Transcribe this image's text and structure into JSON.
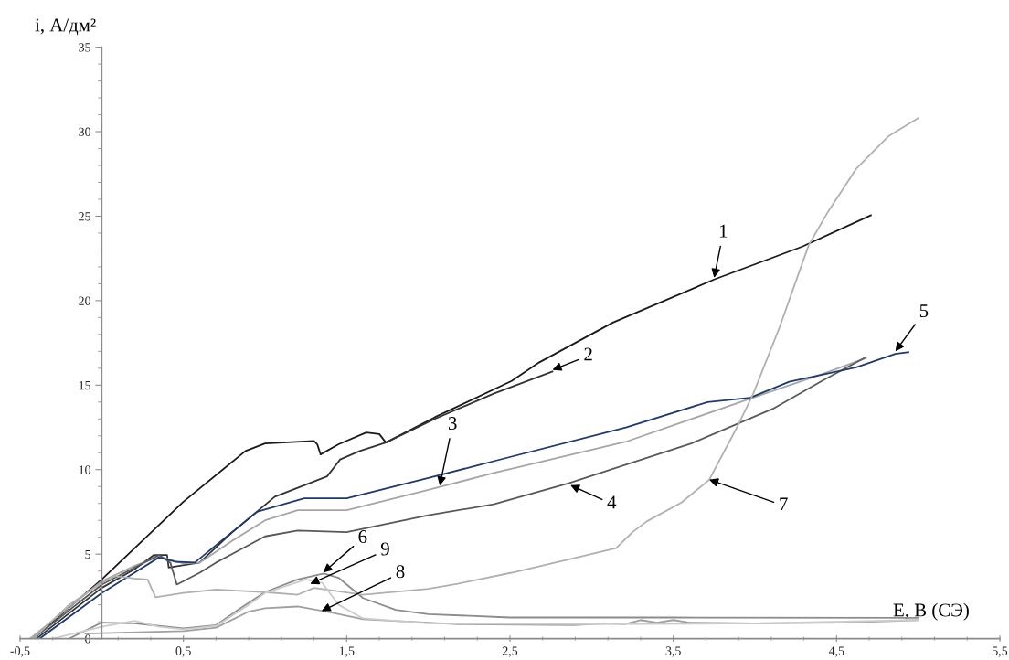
{
  "chart_data": {
    "type": "line",
    "xlabel": "E, В (СЭ)",
    "ylabel": "i, А/дм²",
    "xlim": [
      -0.5,
      5.5
    ],
    "ylim": [
      0,
      35
    ],
    "xticks": [
      {
        "value": -0.5,
        "label": "-0,5"
      },
      {
        "value": 0.5,
        "label": "0,5"
      },
      {
        "value": 1.5,
        "label": "1,5"
      },
      {
        "value": 2.5,
        "label": "2,5"
      },
      {
        "value": 3.5,
        "label": "3,5"
      },
      {
        "value": 4.5,
        "label": "4,5"
      },
      {
        "value": 5.5,
        "label": "5,5"
      }
    ],
    "yticks": [
      0,
      5,
      10,
      15,
      20,
      25,
      30,
      35
    ],
    "grid": false,
    "legend": false,
    "marker": "none",
    "line_style": "solid",
    "series": [
      {
        "color": "#1a1a1a",
        "x": [
          -0.42,
          0,
          0.5,
          0.88,
          1.0,
          1.3,
          1.32,
          1.34,
          1.45,
          1.62,
          1.7,
          1.74,
          2.04,
          2.51,
          2.68,
          3.13,
          3.75,
          4.29,
          4.71
        ],
        "values": [
          0,
          3.5,
          8.1,
          11.1,
          11.55,
          11.7,
          11.5,
          10.9,
          11.5,
          12.2,
          12.1,
          11.6,
          13.1,
          15.25,
          16.35,
          18.7,
          21.25,
          23.2,
          25.05
        ]
      },
      {
        "color": "#333333",
        "x": [
          -0.4,
          0,
          0.2,
          0.32,
          0.4,
          0.41,
          0.6,
          0.8,
          1.06,
          1.38,
          1.46,
          1.58,
          1.74,
          2.04,
          2.4,
          2.76
        ],
        "values": [
          0,
          3.0,
          4.1,
          4.95,
          4.95,
          4.2,
          4.5,
          6.3,
          8.4,
          9.6,
          10.6,
          11.1,
          11.6,
          13.0,
          14.5,
          15.8
        ]
      },
      {
        "color": "#a6a6a6",
        "x": [
          -0.44,
          0,
          0.2,
          0.35,
          0.5,
          0.6,
          0.8,
          1.0,
          1.2,
          1.5,
          2.0,
          2.4,
          3.21,
          3.97,
          4.41,
          4.68
        ],
        "values": [
          0,
          3.4,
          4.3,
          4.85,
          4.45,
          4.5,
          5.8,
          7.0,
          7.6,
          7.6,
          8.8,
          9.8,
          11.65,
          14.2,
          15.65,
          16.6
        ]
      },
      {
        "color": "#595959",
        "x": [
          -0.42,
          0,
          0.2,
          0.35,
          0.42,
          0.46,
          0.6,
          0.7,
          1.0,
          1.2,
          1.5,
          2.0,
          2.4,
          2.86,
          3.61,
          4.11,
          4.41,
          4.67
        ],
        "values": [
          0,
          3.2,
          4.2,
          4.95,
          4.5,
          3.2,
          3.9,
          4.5,
          6.05,
          6.4,
          6.3,
          7.3,
          7.95,
          9.2,
          11.55,
          13.6,
          15.25,
          16.6
        ]
      },
      {
        "color": "#1f3a6e",
        "x": [
          -0.38,
          0,
          0.2,
          0.35,
          0.45,
          0.57,
          0.95,
          1.24,
          1.5,
          2.0,
          2.4,
          3.21,
          3.71,
          3.97,
          4.21,
          4.62,
          4.86,
          4.94
        ],
        "values": [
          0,
          2.7,
          3.9,
          4.8,
          4.55,
          4.5,
          7.5,
          8.3,
          8.3,
          9.5,
          10.5,
          12.5,
          14.0,
          14.25,
          15.2,
          16.05,
          16.85,
          16.95
        ]
      },
      {
        "color": "#8c8c8c",
        "x": [
          -0.2,
          0,
          0.2,
          0.5,
          0.7,
          0.85,
          1.0,
          1.2,
          1.36,
          1.45,
          1.6,
          1.8,
          2.0,
          2.5,
          3.5,
          5.0
        ],
        "values": [
          0,
          0.95,
          0.9,
          0.6,
          0.8,
          1.8,
          2.75,
          3.5,
          3.85,
          3.6,
          2.4,
          1.7,
          1.45,
          1.25,
          1.25,
          1.23
        ]
      },
      {
        "color": "#b0b0b0",
        "x": [
          -0.42,
          -0.2,
          0,
          0.08,
          0.2,
          0.28,
          0.33,
          0.5,
          0.7,
          1.0,
          1.2,
          1.3,
          1.6,
          2.0,
          2.18,
          2.51,
          2.82,
          3.15,
          3.25,
          3.34,
          3.55,
          3.72,
          3.89,
          3.99,
          4.15,
          4.33,
          4.45,
          4.62,
          4.82,
          5.0
        ],
        "values": [
          0,
          2.0,
          3.3,
          3.7,
          3.55,
          3.5,
          2.45,
          2.7,
          2.9,
          2.75,
          2.6,
          3.0,
          2.6,
          2.95,
          3.25,
          3.9,
          4.6,
          5.35,
          6.3,
          6.95,
          8.05,
          9.4,
          12.5,
          14.5,
          18.4,
          23.3,
          25.3,
          27.8,
          29.75,
          30.8
        ]
      },
      {
        "color": "#a0a0a0",
        "x": [
          -0.1,
          0.5,
          0.7,
          0.9,
          1.0,
          1.2,
          1.4,
          1.6,
          2.0,
          2.18,
          2.89,
          3.1,
          3.2,
          3.3,
          3.4,
          3.5,
          3.6,
          4.0,
          4.54,
          5.0
        ],
        "values": [
          0.3,
          0.45,
          0.65,
          1.6,
          1.8,
          1.9,
          1.55,
          1.15,
          0.95,
          0.85,
          0.8,
          0.9,
          0.85,
          1.1,
          0.95,
          1.1,
          0.95,
          0.9,
          0.95,
          1.1
        ]
      },
      {
        "color": "#cccccc",
        "x": [
          -0.3,
          0,
          0.2,
          0.35,
          0.5,
          0.7,
          0.9,
          1.0,
          1.25,
          1.35,
          1.45,
          1.6,
          2.0,
          3.0,
          4.0,
          5.0
        ],
        "values": [
          0,
          0.7,
          1.05,
          0.7,
          0.55,
          0.75,
          2.0,
          2.7,
          3.5,
          3.3,
          2.0,
          1.2,
          0.9,
          0.85,
          0.9,
          1.1
        ]
      }
    ],
    "annotations": [
      {
        "text": "1",
        "x": 3.75,
        "y": 21.35
      },
      {
        "text": "2",
        "x": 2.76,
        "y": 15.9
      },
      {
        "text": "3",
        "x": 2.07,
        "y": 9.05
      },
      {
        "text": "4",
        "x": 2.87,
        "y": 9.08
      },
      {
        "text": "5",
        "x": 4.86,
        "y": 17.0
      },
      {
        "text": "6",
        "x": 1.356,
        "y": 3.91
      },
      {
        "text": "7",
        "x": 3.72,
        "y": 9.41
      },
      {
        "text": "8",
        "x": 1.346,
        "y": 1.63
      },
      {
        "text": "9",
        "x": 1.276,
        "y": 3.24
      }
    ]
  }
}
